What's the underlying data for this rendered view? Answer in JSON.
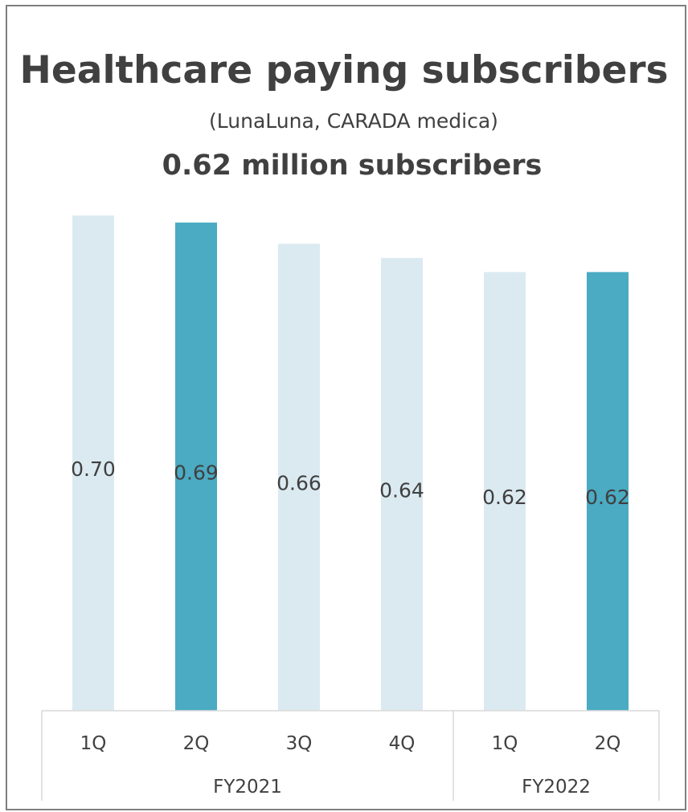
{
  "title": "Healthcare paying subscribers",
  "subtitle": "(LunaLuna, CARADA medica)",
  "headline": "0.62 million subscribers",
  "colors": {
    "bar_light": "#dbeaf1",
    "bar_highlight": "#4aabc3",
    "axis_lines": "#d9d9d9",
    "text": "#404040"
  },
  "chart_data": {
    "type": "bar",
    "categories": [
      "1Q",
      "2Q",
      "3Q",
      "4Q",
      "1Q",
      "2Q"
    ],
    "groups": [
      {
        "label": "FY2021",
        "span": 4
      },
      {
        "label": "FY2022",
        "span": 2
      }
    ],
    "values": [
      0.7,
      0.69,
      0.66,
      0.64,
      0.62,
      0.62
    ],
    "value_labels": [
      "0.70",
      "0.69",
      "0.66",
      "0.64",
      "0.62",
      "0.62"
    ],
    "highlighted": [
      false,
      true,
      false,
      false,
      false,
      true
    ],
    "ylim": [
      0,
      0.7
    ],
    "grid": false,
    "legend": "none",
    "xlabel": "",
    "ylabel": ""
  }
}
